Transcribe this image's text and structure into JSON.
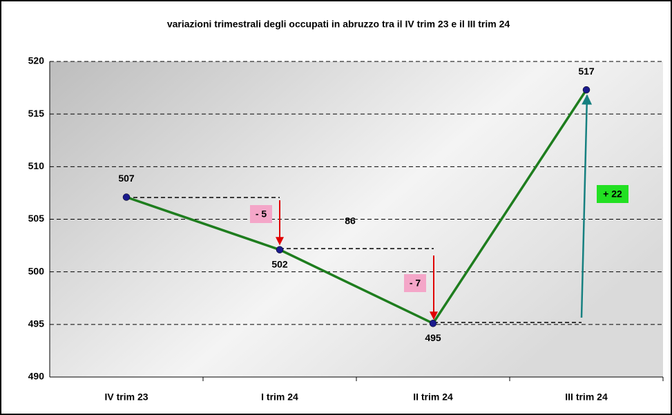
{
  "chart_data": {
    "type": "line",
    "title": "variazioni trimestrali degli occupati in abruzzo tra il IV trim 23 e il III trim 24",
    "categories": [
      "IV trim 23",
      "I trim 24",
      "II trim 24",
      "III trim 24"
    ],
    "series": [
      {
        "name": "occupati",
        "color": "#1e7d1e",
        "marker_color": "#1a1a8c",
        "values": [
          507.1,
          502.1,
          495.1,
          517.3
        ],
        "value_labels": [
          "507",
          "502",
          "495",
          "517"
        ]
      }
    ],
    "ylim": [
      490,
      520
    ],
    "yticks": [
      490,
      495,
      500,
      505,
      510,
      515,
      520
    ],
    "grid": true,
    "annotations": [
      "- 5",
      "- 7",
      "+ 22",
      "86"
    ]
  }
}
